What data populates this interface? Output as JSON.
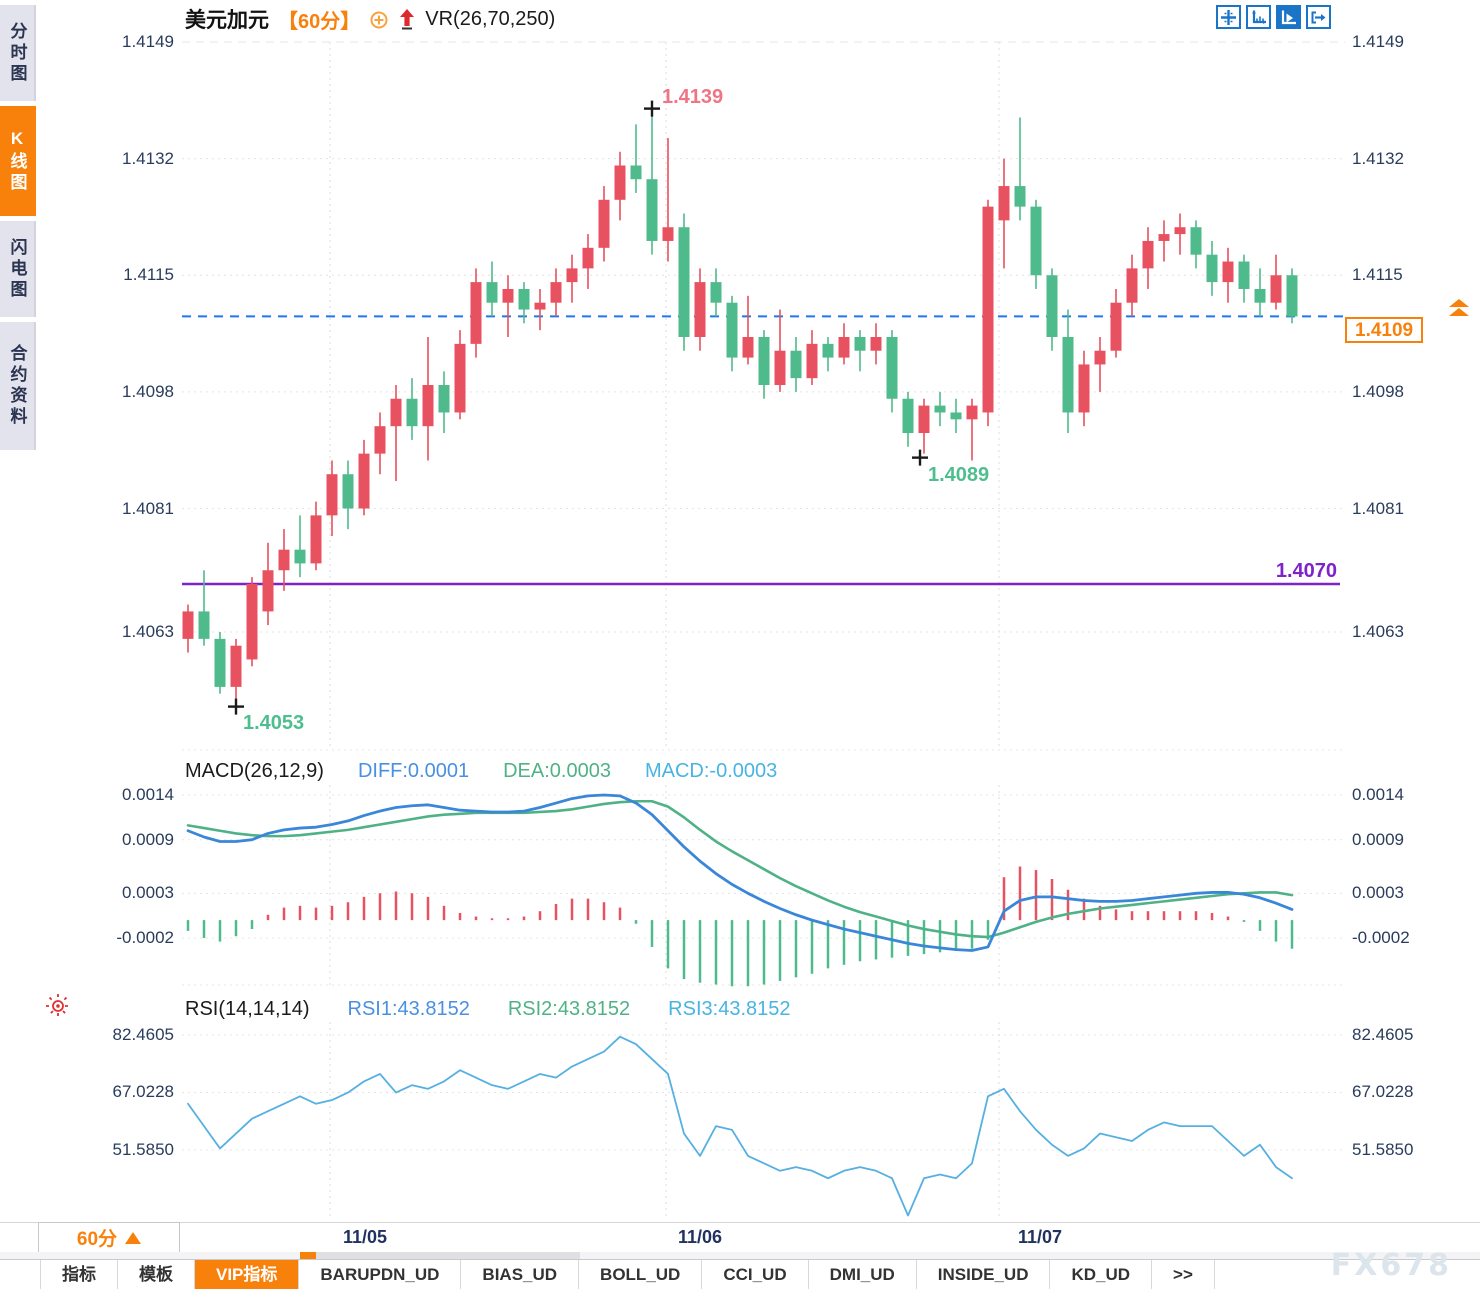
{
  "window_title": "USDCAD 60min chart",
  "colors": {
    "accent_orange": "#f8810c",
    "candle_up_red": "#e8515f",
    "candle_down_green": "#4fba8c",
    "diff_blue": "#3a86d8",
    "dea_green": "#4fb286",
    "macd_cyan": "#47b4e4",
    "rsi_blue": "#55b0e2",
    "support_purple": "#7e22cc",
    "dashed_price_blue": "#1e78e8",
    "annotation_pink": "#ef7585",
    "annotation_green": "#4fbe8f",
    "toolbar_blue": "#1a74c8"
  },
  "sidebar": {
    "items": [
      {
        "label": "分时图",
        "active": false
      },
      {
        "label": "K线图",
        "active": true
      },
      {
        "label": "闪电图",
        "active": false
      },
      {
        "label": "合约资料",
        "active": false
      }
    ]
  },
  "header": {
    "symbol": "美元加元",
    "period_tag": "【60分】",
    "indicator": "VR(26,70,250)",
    "toolbar_icons": [
      {
        "name": "crosshair-pan",
        "active": false
      },
      {
        "name": "axis-scale",
        "active": false
      },
      {
        "name": "axis-play",
        "active": true
      },
      {
        "name": "exit-panel",
        "active": false
      }
    ]
  },
  "main_chart": {
    "current_price": {
      "text": "1.4109",
      "value": 1.4109
    },
    "support_line": {
      "text": "1.4070",
      "value": 1.407
    },
    "annotations": {
      "high": {
        "text": "1.4139",
        "value": 1.4139,
        "candle": 29
      },
      "low": {
        "text": "1.4053",
        "value": 1.4053,
        "candle": 3
      },
      "swing_low": {
        "text": "1.4089",
        "value": 1.4089,
        "candle": 46
      }
    }
  },
  "chart_data": [
    {
      "type": "candlestick",
      "title": "美元加元 60分 K线",
      "y_ticks": [
        "1.4149",
        "1.4132",
        "1.4115",
        "1.4098",
        "1.4081",
        "1.4063"
      ],
      "y_tick_values": [
        1.4149,
        1.4132,
        1.4115,
        1.4098,
        1.4081,
        1.4063
      ],
      "ylim": [
        1.4049,
        1.4149
      ],
      "x_labels": [
        "11/05",
        "11/06",
        "11/07"
      ],
      "day_start_indices": [
        9,
        30,
        51
      ],
      "candles_ohlc": [
        [
          1.4062,
          1.4067,
          1.406,
          1.4066
        ],
        [
          1.4066,
          1.4072,
          1.4061,
          1.4062
        ],
        [
          1.4062,
          1.4063,
          1.4054,
          1.4055
        ],
        [
          1.4055,
          1.4062,
          1.4053,
          1.4061
        ],
        [
          1.4059,
          1.4071,
          1.4058,
          1.407
        ],
        [
          1.4066,
          1.4076,
          1.4064,
          1.4072
        ],
        [
          1.4072,
          1.4078,
          1.4069,
          1.4075
        ],
        [
          1.4075,
          1.408,
          1.4071,
          1.4073
        ],
        [
          1.4073,
          1.4082,
          1.4072,
          1.408
        ],
        [
          1.408,
          1.4088,
          1.4077,
          1.4086
        ],
        [
          1.4086,
          1.4088,
          1.4078,
          1.4081
        ],
        [
          1.4081,
          1.4091,
          1.408,
          1.4089
        ],
        [
          1.4089,
          1.4095,
          1.4086,
          1.4093
        ],
        [
          1.4093,
          1.4099,
          1.4085,
          1.4097
        ],
        [
          1.4097,
          1.41,
          1.4091,
          1.4093
        ],
        [
          1.4093,
          1.4106,
          1.4088,
          1.4099
        ],
        [
          1.4099,
          1.4101,
          1.4092,
          1.4095
        ],
        [
          1.4095,
          1.4107,
          1.4094,
          1.4105
        ],
        [
          1.4105,
          1.4116,
          1.4103,
          1.4114
        ],
        [
          1.4114,
          1.4117,
          1.4109,
          1.4111
        ],
        [
          1.4111,
          1.4115,
          1.4106,
          1.4113
        ],
        [
          1.4113,
          1.4114,
          1.4108,
          1.411
        ],
        [
          1.411,
          1.4113,
          1.4107,
          1.4111
        ],
        [
          1.4111,
          1.4116,
          1.4109,
          1.4114
        ],
        [
          1.4114,
          1.4118,
          1.4111,
          1.4116
        ],
        [
          1.4116,
          1.4121,
          1.4113,
          1.4119
        ],
        [
          1.4119,
          1.4128,
          1.4117,
          1.4126
        ],
        [
          1.4126,
          1.4133,
          1.4123,
          1.4131
        ],
        [
          1.4131,
          1.4137,
          1.4127,
          1.4129
        ],
        [
          1.4129,
          1.4139,
          1.4118,
          1.412
        ],
        [
          1.412,
          1.4135,
          1.4117,
          1.4122
        ],
        [
          1.4122,
          1.4124,
          1.4104,
          1.4106
        ],
        [
          1.4106,
          1.4116,
          1.4104,
          1.4114
        ],
        [
          1.4114,
          1.4116,
          1.4109,
          1.4111
        ],
        [
          1.4111,
          1.4112,
          1.4101,
          1.4103
        ],
        [
          1.4103,
          1.4112,
          1.4102,
          1.4106
        ],
        [
          1.4106,
          1.4107,
          1.4097,
          1.4099
        ],
        [
          1.4099,
          1.411,
          1.4098,
          1.4104
        ],
        [
          1.4104,
          1.4106,
          1.4098,
          1.41
        ],
        [
          1.41,
          1.4107,
          1.4099,
          1.4105
        ],
        [
          1.4105,
          1.4106,
          1.4101,
          1.4103
        ],
        [
          1.4103,
          1.4108,
          1.4102,
          1.4106
        ],
        [
          1.4106,
          1.4107,
          1.4101,
          1.4104
        ],
        [
          1.4104,
          1.4108,
          1.4102,
          1.4106
        ],
        [
          1.4106,
          1.4107,
          1.4095,
          1.4097
        ],
        [
          1.4097,
          1.4098,
          1.409,
          1.4092
        ],
        [
          1.4092,
          1.4097,
          1.4089,
          1.4096
        ],
        [
          1.4096,
          1.4098,
          1.4093,
          1.4095
        ],
        [
          1.4095,
          1.4097,
          1.4092,
          1.4094
        ],
        [
          1.4094,
          1.4097,
          1.4088,
          1.4096
        ],
        [
          1.4095,
          1.4126,
          1.4093,
          1.4125
        ],
        [
          1.4123,
          1.4132,
          1.4116,
          1.4128
        ],
        [
          1.4128,
          1.4138,
          1.4123,
          1.4125
        ],
        [
          1.4125,
          1.4126,
          1.4113,
          1.4115
        ],
        [
          1.4115,
          1.4116,
          1.4104,
          1.4106
        ],
        [
          1.4106,
          1.411,
          1.4092,
          1.4095
        ],
        [
          1.4095,
          1.4104,
          1.4093,
          1.4102
        ],
        [
          1.4102,
          1.4106,
          1.4098,
          1.4104
        ],
        [
          1.4104,
          1.4113,
          1.4103,
          1.4111
        ],
        [
          1.4111,
          1.4118,
          1.4109,
          1.4116
        ],
        [
          1.4116,
          1.4122,
          1.4113,
          1.412
        ],
        [
          1.412,
          1.4123,
          1.4117,
          1.4121
        ],
        [
          1.4121,
          1.4124,
          1.4118,
          1.4122
        ],
        [
          1.4122,
          1.4123,
          1.4116,
          1.4118
        ],
        [
          1.4118,
          1.412,
          1.4112,
          1.4114
        ],
        [
          1.4114,
          1.4119,
          1.4111,
          1.4117
        ],
        [
          1.4117,
          1.4118,
          1.4111,
          1.4113
        ],
        [
          1.4113,
          1.4116,
          1.4109,
          1.4111
        ],
        [
          1.4111,
          1.4118,
          1.411,
          1.4115
        ],
        [
          1.4115,
          1.4116,
          1.4108,
          1.4109
        ]
      ]
    },
    {
      "type": "line",
      "title": "MACD(26,12,9)",
      "legend": [
        {
          "text": "DIFF:0.0001",
          "color": "#4a90e2"
        },
        {
          "text": "DEA:0.0003",
          "color": "#4fb286"
        },
        {
          "text": "MACD:-0.0003",
          "color": "#47b4e4"
        }
      ],
      "y_ticks": [
        "0.0014",
        "0.0009",
        "0.0003",
        "-0.0002"
      ],
      "y_tick_values": [
        0.0014,
        0.0009,
        0.0003,
        -0.0002
      ],
      "diff": [
        0.001,
        0.00093,
        0.00088,
        0.00088,
        0.0009,
        0.00097,
        0.00101,
        0.00103,
        0.00104,
        0.00107,
        0.00111,
        0.00117,
        0.00122,
        0.00126,
        0.00128,
        0.00129,
        0.00126,
        0.00123,
        0.00122,
        0.00121,
        0.00121,
        0.00122,
        0.00126,
        0.00131,
        0.00136,
        0.00139,
        0.0014,
        0.00139,
        0.00131,
        0.00118,
        0.001,
        0.00082,
        0.00066,
        0.00052,
        0.0004,
        0.0003,
        0.00021,
        0.00013,
        6e-05,
        0.0,
        -5e-05,
        -0.0001,
        -0.00014,
        -0.00018,
        -0.00022,
        -0.00026,
        -0.00029,
        -0.00031,
        -0.00033,
        -0.00034,
        -0.0003,
        0.0001,
        0.00022,
        0.00026,
        0.00026,
        0.00024,
        0.00022,
        0.00021,
        0.00021,
        0.00022,
        0.00024,
        0.00026,
        0.00028,
        0.0003,
        0.00031,
        0.00031,
        0.00029,
        0.00025,
        0.00019,
        0.00012
      ],
      "dea": [
        0.00106,
        0.00103,
        0.001,
        0.00097,
        0.00095,
        0.00094,
        0.00094,
        0.00095,
        0.00097,
        0.00099,
        0.00101,
        0.00104,
        0.00107,
        0.0011,
        0.00113,
        0.00116,
        0.00118,
        0.00119,
        0.0012,
        0.0012,
        0.0012,
        0.0012,
        0.00121,
        0.00122,
        0.00124,
        0.00127,
        0.0013,
        0.00132,
        0.00133,
        0.00133,
        0.00127,
        0.00115,
        0.00101,
        0.00088,
        0.00077,
        0.00067,
        0.00057,
        0.00047,
        0.00038,
        0.0003,
        0.00022,
        0.00015,
        9e-05,
        4e-05,
        -1e-05,
        -6e-05,
        -0.0001,
        -0.00013,
        -0.00016,
        -0.00018,
        -0.00019,
        -0.00014,
        -8e-05,
        -2e-05,
        3e-05,
        7e-05,
        0.0001,
        0.00013,
        0.00015,
        0.00017,
        0.00019,
        0.00021,
        0.00023,
        0.00025,
        0.00027,
        0.00029,
        0.0003,
        0.00031,
        0.00031,
        0.00028
      ],
      "histogram_rule": "2*(diff-dea)"
    },
    {
      "type": "line",
      "title": "RSI(14,14,14)",
      "legend": [
        {
          "text": "RSI1:43.8152",
          "color": "#4a90e2"
        },
        {
          "text": "RSI2:43.8152",
          "color": "#4fb286"
        },
        {
          "text": "RSI3:43.8152",
          "color": "#47b4e4"
        }
      ],
      "y_ticks": [
        "82.4605",
        "67.0228",
        "51.5850"
      ],
      "y_tick_values": [
        82.4605,
        67.0228,
        51.585
      ],
      "rsi": [
        64,
        58,
        52,
        56,
        60,
        62,
        64,
        66,
        64,
        65,
        67,
        70,
        72,
        67,
        69,
        68,
        70,
        73,
        71,
        69,
        68,
        70,
        72,
        71,
        74,
        76,
        78,
        82,
        80,
        76,
        72,
        56,
        50,
        58,
        57,
        50,
        48,
        46,
        47,
        46,
        44,
        46,
        47,
        46,
        44,
        34,
        44,
        45,
        44,
        48,
        66,
        68,
        62,
        57,
        53,
        50,
        52,
        56,
        55,
        54,
        57,
        59,
        58,
        58,
        58,
        54,
        50,
        53,
        47,
        44
      ]
    }
  ],
  "xaxis": {
    "period_button": "60分",
    "labels": [
      "11/05",
      "11/06",
      "11/07"
    ]
  },
  "bottom_tabs": [
    {
      "label": "指标",
      "active": false
    },
    {
      "label": "模板",
      "active": false
    },
    {
      "label": "VIP指标",
      "active": true
    },
    {
      "label": "BARUPDN_UD",
      "active": false
    },
    {
      "label": "BIAS_UD",
      "active": false
    },
    {
      "label": "BOLL_UD",
      "active": false
    },
    {
      "label": "CCI_UD",
      "active": false
    },
    {
      "label": "DMI_UD",
      "active": false
    },
    {
      "label": "INSIDE_UD",
      "active": false
    },
    {
      "label": "KD_UD",
      "active": false
    },
    {
      "label": ">>",
      "active": false
    }
  ],
  "watermark": "FX678"
}
